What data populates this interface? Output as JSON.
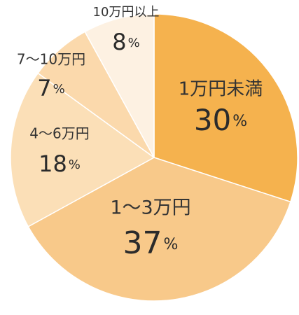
{
  "chart_data": {
    "type": "pie",
    "slices": [
      {
        "label": "1万円未満",
        "value": 30,
        "color": "#f5b24e"
      },
      {
        "label": "1～3万円",
        "value": 37,
        "color": "#f8c98a"
      },
      {
        "label": "4～6万円",
        "value": 18,
        "color": "#fbdfb7"
      },
      {
        "label": "7～10万円",
        "value": 7,
        "color": "#fbd9ac"
      },
      {
        "label": "10万円以上",
        "value": 8,
        "color": "#fdf1e2"
      }
    ],
    "unit": "%",
    "start": "12 o'clock",
    "direction": "clockwise"
  }
}
